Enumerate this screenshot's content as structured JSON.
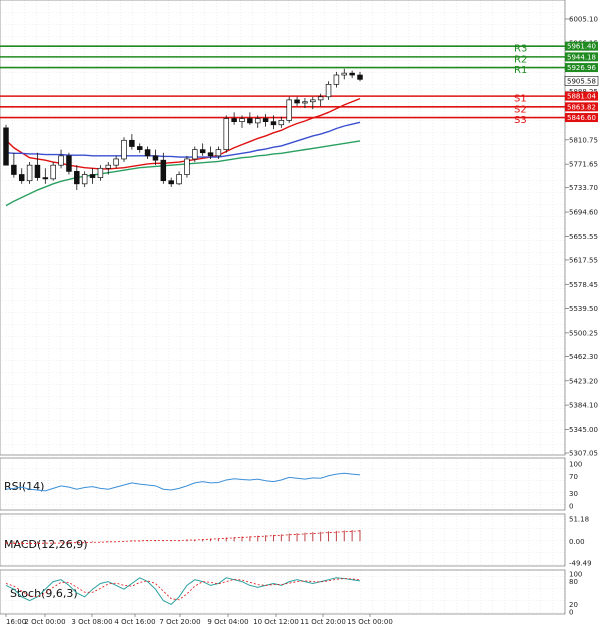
{
  "chart_data": {
    "type": "candlestick",
    "price_axis": {
      "ticks": [
        "6005.10",
        "5966.15",
        "5927.20",
        "5888.25",
        "5849.30",
        "5810.75",
        "5771.65",
        "5733.70",
        "5694.60",
        "5655.55",
        "5617.55",
        "5578.45",
        "5539.50",
        "5500.25",
        "5462.30",
        "5423.20",
        "5384.10",
        "5345.00",
        "5307.05"
      ],
      "range": [
        5307.05,
        6005.1
      ]
    },
    "time_axis": {
      "labels": [
        "16:00",
        "2 Oct 00:00",
        "3 Oct 08:00",
        "4 Oct 16:00",
        "7 Oct 20:00",
        "9 Oct 04:00",
        "10 Oct 12:00",
        "11 Oct 20:00",
        "15 Oct 00:00"
      ]
    },
    "levels": [
      {
        "name": "R3",
        "value": 5961.4,
        "label": "5961.40",
        "color": "#1f8a1f"
      },
      {
        "name": "R2",
        "value": 5944.18,
        "label": "5944.18",
        "color": "#1f8a1f"
      },
      {
        "name": "R1",
        "value": 5926.96,
        "label": "5926.96",
        "color": "#1f8a1f"
      },
      {
        "name": "S1",
        "value": 5881.04,
        "label": "5881.04",
        "color": "#e01010"
      },
      {
        "name": "S2",
        "value": 5863.82,
        "label": "5863.82",
        "color": "#e01010"
      },
      {
        "name": "S3",
        "value": 5846.6,
        "label": "5846.60",
        "color": "#e01010"
      }
    ],
    "current_price": {
      "value": 5905.58,
      "label": "5905.58"
    },
    "candles": [
      [
        5830,
        5835,
        5770,
        5770
      ],
      [
        5770,
        5790,
        5750,
        5755
      ],
      [
        5755,
        5765,
        5740,
        5745
      ],
      [
        5745,
        5775,
        5740,
        5770
      ],
      [
        5770,
        5790,
        5745,
        5750
      ],
      [
        5750,
        5765,
        5740,
        5748
      ],
      [
        5748,
        5775,
        5745,
        5770
      ],
      [
        5770,
        5795,
        5765,
        5785
      ],
      [
        5785,
        5790,
        5755,
        5760
      ],
      [
        5760,
        5770,
        5730,
        5740
      ],
      [
        5740,
        5760,
        5735,
        5755
      ],
      [
        5755,
        5765,
        5740,
        5750
      ],
      [
        5750,
        5770,
        5745,
        5765
      ],
      [
        5765,
        5775,
        5755,
        5770
      ],
      [
        5770,
        5785,
        5765,
        5780
      ],
      [
        5780,
        5815,
        5775,
        5810
      ],
      [
        5810,
        5820,
        5795,
        5800
      ],
      [
        5800,
        5805,
        5790,
        5795
      ],
      [
        5795,
        5800,
        5780,
        5785
      ],
      [
        5785,
        5795,
        5770,
        5778
      ],
      [
        5778,
        5790,
        5740,
        5745
      ],
      [
        5745,
        5750,
        5735,
        5740
      ],
      [
        5740,
        5760,
        5738,
        5755
      ],
      [
        5755,
        5785,
        5750,
        5780
      ],
      [
        5780,
        5800,
        5775,
        5795
      ],
      [
        5795,
        5805,
        5785,
        5790
      ],
      [
        5790,
        5800,
        5780,
        5785
      ],
      [
        5785,
        5800,
        5780,
        5795
      ],
      [
        5795,
        5850,
        5790,
        5845
      ],
      [
        5845,
        5855,
        5835,
        5840
      ],
      [
        5840,
        5850,
        5830,
        5845
      ],
      [
        5845,
        5855,
        5835,
        5838
      ],
      [
        5838,
        5850,
        5830,
        5845
      ],
      [
        5845,
        5852,
        5832,
        5840
      ],
      [
        5840,
        5850,
        5828,
        5835
      ],
      [
        5835,
        5848,
        5830,
        5842
      ],
      [
        5842,
        5880,
        5838,
        5875
      ],
      [
        5875,
        5880,
        5865,
        5870
      ],
      [
        5870,
        5878,
        5862,
        5872
      ],
      [
        5872,
        5880,
        5860,
        5875
      ],
      [
        5875,
        5885,
        5865,
        5880
      ],
      [
        5880,
        5905,
        5875,
        5900
      ],
      [
        5900,
        5920,
        5895,
        5915
      ],
      [
        5915,
        5925,
        5908,
        5918
      ],
      [
        5918,
        5922,
        5910,
        5915
      ],
      [
        5915,
        5920,
        5905,
        5908
      ]
    ],
    "moving_averages": [
      {
        "color": "#e01010",
        "values": [
          5810,
          5798,
          5790,
          5782,
          5780,
          5778,
          5775,
          5773,
          5770,
          5768,
          5766,
          5765,
          5764,
          5764,
          5765,
          5766,
          5768,
          5770,
          5772,
          5773,
          5773,
          5774,
          5775,
          5777,
          5779,
          5781,
          5783,
          5786,
          5792,
          5798,
          5803,
          5808,
          5813,
          5817,
          5822,
          5826,
          5832,
          5837,
          5841,
          5846,
          5850,
          5855,
          5861,
          5867,
          5872,
          5877
        ]
      },
      {
        "color": "#3a4fd0",
        "values": [
          5790,
          5789,
          5789,
          5788,
          5788,
          5787,
          5787,
          5787,
          5786,
          5786,
          5786,
          5785,
          5785,
          5785,
          5785,
          5785,
          5785,
          5785,
          5785,
          5785,
          5784,
          5784,
          5783,
          5783,
          5783,
          5783,
          5783,
          5783,
          5785,
          5787,
          5789,
          5791,
          5794,
          5796,
          5799,
          5801,
          5805,
          5809,
          5813,
          5817,
          5820,
          5824,
          5829,
          5833,
          5836,
          5839
        ]
      },
      {
        "color": "#2aa060",
        "values": [
          5705,
          5712,
          5718,
          5724,
          5730,
          5735,
          5740,
          5744,
          5747,
          5750,
          5752,
          5754,
          5756,
          5758,
          5760,
          5762,
          5764,
          5766,
          5767,
          5768,
          5769,
          5770,
          5771,
          5772,
          5773,
          5774,
          5775,
          5776,
          5778,
          5780,
          5782,
          5783,
          5785,
          5786,
          5788,
          5789,
          5791,
          5793,
          5795,
          5797,
          5799,
          5801,
          5803,
          5805,
          5807,
          5809
        ]
      }
    ],
    "rsi": {
      "name": "RSI(14)",
      "ticks": [
        "100",
        "70",
        "30",
        "0"
      ],
      "values": [
        40,
        42,
        45,
        40,
        38,
        36,
        42,
        48,
        45,
        40,
        44,
        46,
        42,
        40,
        45,
        50,
        55,
        52,
        50,
        48,
        40,
        38,
        42,
        48,
        55,
        58,
        55,
        56,
        62,
        65,
        63,
        62,
        64,
        60,
        58,
        62,
        68,
        66,
        64,
        67,
        66,
        72,
        76,
        78,
        76,
        74
      ]
    },
    "macd": {
      "name": "MACD(12,26,9)",
      "ticks": [
        "51.18",
        "0.00",
        "-49.49"
      ],
      "values": [
        -5,
        -6,
        -6,
        -5,
        -5,
        -4,
        -4,
        -3,
        -3,
        -3,
        -2,
        -2,
        -1,
        -1,
        0,
        1,
        2,
        2,
        3,
        3,
        2,
        2,
        2,
        3,
        4,
        5,
        6,
        7,
        9,
        10,
        11,
        12,
        13,
        14,
        15,
        16,
        18,
        19,
        20,
        21,
        22,
        23,
        24,
        25,
        26,
        26
      ],
      "signal": [
        -4,
        -5,
        -5,
        -5,
        -5,
        -4,
        -4,
        -4,
        -3,
        -3,
        -3,
        -2,
        -2,
        -1,
        -1,
        0,
        1,
        1,
        2,
        2,
        2,
        2,
        2,
        3,
        3,
        4,
        5,
        6,
        7,
        8,
        9,
        10,
        11,
        12,
        13,
        14,
        15,
        16,
        17,
        18,
        19,
        20,
        21,
        22,
        23,
        24
      ]
    },
    "stoch": {
      "name": "Stoch(9,6,3)",
      "ticks": [
        "100",
        "80",
        "20",
        "0"
      ],
      "k": [
        70,
        60,
        40,
        30,
        40,
        60,
        80,
        85,
        70,
        50,
        40,
        60,
        75,
        80,
        70,
        60,
        75,
        90,
        80,
        60,
        30,
        20,
        40,
        70,
        85,
        80,
        70,
        75,
        90,
        85,
        80,
        70,
        65,
        70,
        75,
        70,
        80,
        85,
        80,
        75,
        80,
        85,
        90,
        88,
        85,
        82
      ],
      "d": [
        75,
        68,
        55,
        42,
        40,
        50,
        65,
        78,
        78,
        65,
        52,
        52,
        62,
        74,
        76,
        70,
        68,
        78,
        82,
        75,
        55,
        35,
        32,
        48,
        68,
        80,
        78,
        74,
        80,
        86,
        84,
        78,
        72,
        70,
        72,
        72,
        76,
        80,
        82,
        80,
        79,
        82,
        86,
        88,
        87,
        85
      ]
    },
    "grid": true
  }
}
